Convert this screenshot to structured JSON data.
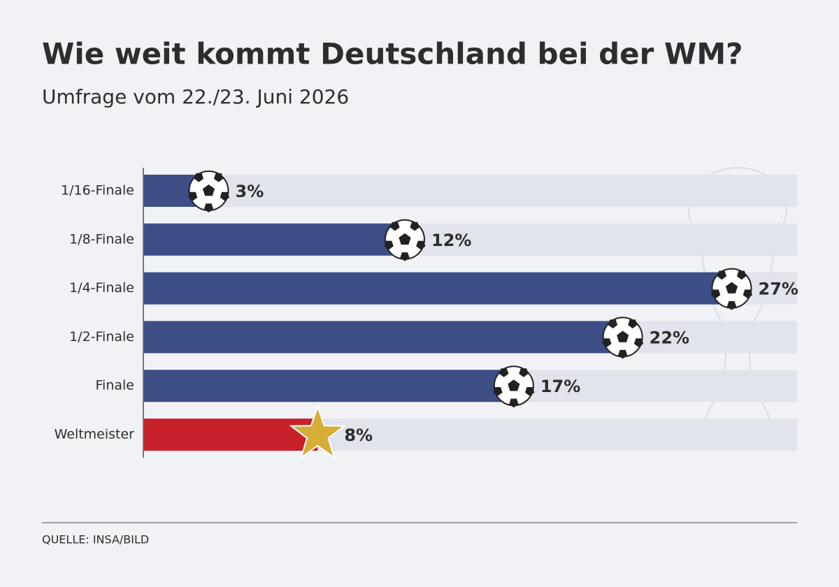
{
  "chart_data": {
    "type": "bar",
    "orientation": "horizontal",
    "title": "Wie weit kommt Deutschland bei der WM?",
    "subtitle": "Umfrage vom 22./23. Juni 2026",
    "categories": [
      "1/16-Finale",
      "1/8-Finale",
      "1/4-Finale",
      "1/2-Finale",
      "Finale",
      "Weltmeister"
    ],
    "values": [
      3,
      12,
      27,
      22,
      17,
      8
    ],
    "value_labels": [
      "3%",
      "12%",
      "27%",
      "22%",
      "17%",
      "8%"
    ],
    "colors": [
      "#3d4e87",
      "#3d4e87",
      "#3d4e87",
      "#3d4e87",
      "#3d4e87",
      "#c8212b"
    ],
    "xlim": [
      0,
      30
    ],
    "source": "QUELLE: INSA/BILD"
  }
}
